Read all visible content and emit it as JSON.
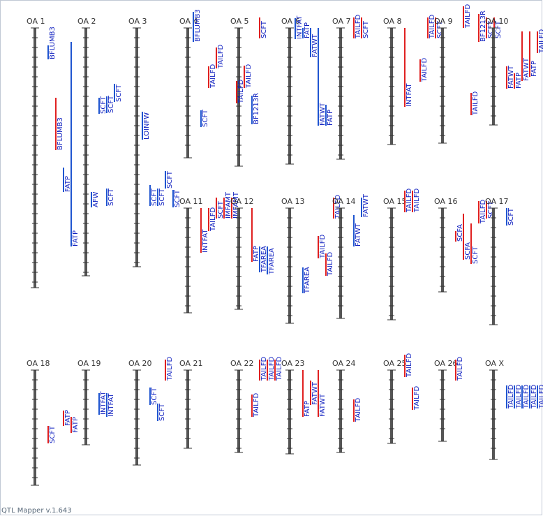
{
  "footer": "QTL Mapper v.1.643",
  "colors": {
    "chromosome": "#555555",
    "tick": "#333333",
    "qtl_red": "#e02020",
    "qtl_blue": "#1f55d0",
    "label": "#1020c0"
  },
  "chromosomes": [
    {
      "name": "OA 1",
      "row": 0,
      "col": 0,
      "length": 372,
      "qtls": [
        {
          "label": "BFLUMB3",
          "lane": 1,
          "start": 25,
          "end": 45,
          "color": "blue"
        },
        {
          "label": "BFLUMB3",
          "lane": 2,
          "start": 100,
          "end": 175,
          "color": "red"
        },
        {
          "label": "FATP",
          "lane": 3,
          "start": 200,
          "end": 235,
          "color": "blue"
        },
        {
          "label": "FATP",
          "lane": 4,
          "start": 20,
          "end": 313,
          "color": "blue"
        }
      ]
    },
    {
      "name": "OA 2",
      "row": 0,
      "col": 1,
      "length": 355,
      "qtls": [
        {
          "label": "SCFT",
          "lane": 1,
          "start": 100,
          "end": 123,
          "color": "blue"
        },
        {
          "label": "SCFT",
          "lane": 2,
          "start": 98,
          "end": 122,
          "color": "blue"
        },
        {
          "label": "SCFT",
          "lane": 3,
          "start": 80,
          "end": 106,
          "color": "blue"
        },
        {
          "label": "AFW",
          "lane": 0,
          "start": 235,
          "end": 257,
          "color": "blue"
        },
        {
          "label": "SCFT",
          "lane": 2,
          "start": 230,
          "end": 255,
          "color": "blue"
        }
      ]
    },
    {
      "name": "OA 3",
      "row": 0,
      "col": 2,
      "length": 342,
      "qtls": [
        {
          "label": "LOINFW",
          "lane": 0,
          "start": 120,
          "end": 160,
          "color": "blue"
        },
        {
          "label": "SCFT",
          "lane": 1,
          "start": 225,
          "end": 255,
          "color": "blue"
        },
        {
          "label": "SCFT",
          "lane": 2,
          "start": 230,
          "end": 255,
          "color": "blue"
        },
        {
          "label": "SCFT",
          "lane": 3,
          "start": 205,
          "end": 230,
          "color": "blue"
        },
        {
          "label": "SCFT",
          "lane": 4,
          "start": 232,
          "end": 257,
          "color": "blue"
        }
      ]
    },
    {
      "name": "OA 4",
      "row": 0,
      "col": 3,
      "length": 186,
      "qtls": [
        {
          "label": "BFLUMB3",
          "lane": 0,
          "start": -23,
          "end": 20,
          "color": "blue"
        },
        {
          "label": "TAILFD",
          "lane": 2,
          "start": 55,
          "end": 86,
          "color": "red"
        },
        {
          "label": "TAILFD",
          "lane": 3,
          "start": 28,
          "end": 58,
          "color": "red"
        },
        {
          "label": "SCFT",
          "lane": 1,
          "start": 118,
          "end": 142,
          "color": "blue"
        }
      ]
    },
    {
      "name": "OA 5",
      "row": 0,
      "col": 4,
      "length": 198,
      "qtls": [
        {
          "label": "SCFT",
          "lane": 2,
          "start": -15,
          "end": 15,
          "color": "red"
        },
        {
          "label": "TAILFD",
          "lane": 0,
          "start": 54,
          "end": 86,
          "color": "red"
        },
        {
          "label": "TAILFD",
          "lane": -1,
          "start": 76,
          "end": 108,
          "color": "red"
        },
        {
          "label": "BF1213R",
          "lane": 1,
          "start": 97,
          "end": 138,
          "color": "blue"
        }
      ]
    },
    {
      "name": "OA 6",
      "row": 0,
      "col": 5,
      "length": 195,
      "qtls": [
        {
          "label": "INTFAT",
          "lane": 0,
          "start": -14,
          "end": 16,
          "color": "blue"
        },
        {
          "label": "FATP",
          "lane": 1,
          "start": 0,
          "end": 15,
          "color": "blue"
        },
        {
          "label": "FATWT",
          "lane": 2,
          "start": 0,
          "end": 42,
          "color": "blue"
        },
        {
          "label": "FATWT",
          "lane": 3,
          "start": 0,
          "end": 140,
          "color": "blue"
        },
        {
          "label": "FATP",
          "lane": 4,
          "start": 110,
          "end": 140,
          "color": "blue"
        }
      ]
    },
    {
      "name": "OA 7",
      "row": 0,
      "col": 6,
      "length": 188,
      "qtls": [
        {
          "label": "TAILFD",
          "lane": 1,
          "start": -15,
          "end": 15,
          "color": "red"
        },
        {
          "label": "SCFT",
          "lane": 2,
          "start": -15,
          "end": 15,
          "color": "red"
        }
      ]
    },
    {
      "name": "OA 8",
      "row": 0,
      "col": 7,
      "length": 167,
      "qtls": [
        {
          "label": "INTFAT",
          "lane": 1,
          "start": 0,
          "end": 113,
          "color": "red"
        },
        {
          "label": "TAILFD",
          "lane": 3,
          "start": 45,
          "end": 77,
          "color": "red"
        },
        {
          "label": "TAILFD",
          "lane": 4,
          "start": -15,
          "end": 15,
          "color": "red"
        },
        {
          "label": "SCFT",
          "lane": 5,
          "start": -15,
          "end": 15,
          "color": "red"
        }
      ]
    },
    {
      "name": "OA 9",
      "row": 0,
      "col": 8,
      "length": 165,
      "qtls": [
        {
          "label": "TAILFD",
          "lane": 2,
          "start": -31,
          "end": 0,
          "color": "red"
        },
        {
          "label": "TAILFD",
          "lane": 3,
          "start": 93,
          "end": 125,
          "color": "red"
        },
        {
          "label": "BF1213R",
          "lane": 4,
          "start": -20,
          "end": 20,
          "color": "red"
        },
        {
          "label": "SCFT",
          "lane": 5,
          "start": -15,
          "end": 15,
          "color": "red"
        },
        {
          "label": "SCFT",
          "lane": 6,
          "start": -15,
          "end": 15,
          "color": "red"
        }
      ]
    },
    {
      "name": "OA 10",
      "row": 0,
      "col": 9,
      "length": 139,
      "qtls": [
        {
          "label": "FATWT",
          "lane": 1,
          "start": 55,
          "end": 87,
          "color": "red"
        },
        {
          "label": "FATP",
          "lane": 2,
          "start": 65,
          "end": 87,
          "color": "red"
        },
        {
          "label": "FATWT",
          "lane": 3,
          "start": 5,
          "end": 76,
          "color": "red"
        },
        {
          "label": "FATP",
          "lane": 4,
          "start": 5,
          "end": 70,
          "color": "red"
        },
        {
          "label": "TAILFD",
          "lane": 5,
          "start": 5,
          "end": 36,
          "color": "red"
        }
      ]
    },
    {
      "name": "OA 11",
      "row": 1,
      "col": 3,
      "length": 150,
      "qtls": [
        {
          "label": "INTFAT",
          "lane": 1,
          "start": 0,
          "end": 64,
          "color": "red"
        },
        {
          "label": "TAILFD",
          "lane": 2,
          "start": 0,
          "end": 33,
          "color": "red"
        },
        {
          "label": "SCFT",
          "lane": 3,
          "start": -15,
          "end": 15,
          "color": "red"
        },
        {
          "label": "IMFAMT",
          "lane": 4,
          "start": -15,
          "end": 15,
          "color": "red"
        },
        {
          "label": "IMFAMT",
          "lane": 5,
          "start": -15,
          "end": 15,
          "color": "red"
        }
      ]
    },
    {
      "name": "OA 12",
      "row": 1,
      "col": 4,
      "length": 145,
      "qtls": [
        {
          "label": "FATP",
          "lane": 1,
          "start": 0,
          "end": 77,
          "color": "red"
        },
        {
          "label": "TFAREA",
          "lane": 2,
          "start": 55,
          "end": 92,
          "color": "blue"
        },
        {
          "label": "TFAREA",
          "lane": 3,
          "start": 55,
          "end": 95,
          "color": "blue"
        }
      ]
    },
    {
      "name": "OA 13",
      "row": 1,
      "col": 5,
      "length": 165,
      "qtls": [
        {
          "label": "TFAREA",
          "lane": 1,
          "start": 85,
          "end": 122,
          "color": "blue"
        },
        {
          "label": "TAILFD",
          "lane": 3,
          "start": 40,
          "end": 72,
          "color": "red"
        },
        {
          "label": "TAILFD",
          "lane": 4,
          "start": 65,
          "end": 97,
          "color": "red"
        },
        {
          "label": "TAILFD",
          "lane": 5,
          "start": -15,
          "end": 15,
          "color": "red"
        }
      ]
    },
    {
      "name": "OA 14",
      "row": 1,
      "col": 6,
      "length": 158,
      "qtls": [
        {
          "label": "FATWT",
          "lane": 1,
          "start": 10,
          "end": 55,
          "color": "blue"
        },
        {
          "label": "FATWT",
          "lane": 2,
          "start": -15,
          "end": 13,
          "color": "blue"
        }
      ]
    },
    {
      "name": "OA 15",
      "row": 1,
      "col": 7,
      "length": 160,
      "qtls": [
        {
          "label": "TAILFD",
          "lane": 1,
          "start": -25,
          "end": 6,
          "color": "red"
        },
        {
          "label": "TAILFD",
          "lane": 2,
          "start": -25,
          "end": 6,
          "color": "red"
        }
      ]
    },
    {
      "name": "OA 16",
      "row": 1,
      "col": 8,
      "length": 120,
      "qtls": [
        {
          "label": "SCFA",
          "lane": 1,
          "start": 33,
          "end": 48,
          "color": "red"
        },
        {
          "label": "SCFA",
          "lane": 2,
          "start": 8,
          "end": 74,
          "color": "red"
        },
        {
          "label": "SCFT",
          "lane": 3,
          "start": 22,
          "end": 80,
          "color": "red"
        },
        {
          "label": "TAILFD",
          "lane": 4,
          "start": -10,
          "end": 22,
          "color": "red"
        },
        {
          "label": "SCFT",
          "lane": 5,
          "start": -10,
          "end": 15,
          "color": "red"
        }
      ]
    },
    {
      "name": "OA 17",
      "row": 1,
      "col": 9,
      "length": 167,
      "qtls": [
        {
          "label": "SCFT",
          "lane": 1,
          "start": 0,
          "end": 25,
          "color": "blue"
        }
      ]
    },
    {
      "name": "OA 18",
      "row": 2,
      "col": 0,
      "length": 165,
      "qtls": [
        {
          "label": "SCFT",
          "lane": 1,
          "start": 80,
          "end": 105,
          "color": "red"
        },
        {
          "label": "FATP",
          "lane": 3,
          "start": 58,
          "end": 80,
          "color": "red"
        },
        {
          "label": "FATP",
          "lane": 4,
          "start": 67,
          "end": 90,
          "color": "red"
        }
      ]
    },
    {
      "name": "OA 19",
      "row": 2,
      "col": 1,
      "length": 107,
      "qtls": [
        {
          "label": "INTFAT",
          "lane": 1,
          "start": 33,
          "end": 64,
          "color": "blue"
        },
        {
          "label": "INTFAT",
          "lane": 2,
          "start": 33,
          "end": 67,
          "color": "blue"
        }
      ]
    },
    {
      "name": "OA 20",
      "row": 2,
      "col": 2,
      "length": 136,
      "qtls": [
        {
          "label": "SCFT",
          "lane": 1,
          "start": 25,
          "end": 50,
          "color": "blue"
        },
        {
          "label": "SCFT",
          "lane": 2,
          "start": 48,
          "end": 73,
          "color": "blue"
        },
        {
          "label": "TAILFD",
          "lane": 3,
          "start": -15,
          "end": 15,
          "color": "red"
        }
      ]
    },
    {
      "name": "OA 21",
      "row": 2,
      "col": 3,
      "length": 112,
      "qtls": []
    },
    {
      "name": "OA 22",
      "row": 2,
      "col": 4,
      "length": 118,
      "qtls": [
        {
          "label": "TAILFD",
          "lane": 1,
          "start": 35,
          "end": 67,
          "color": "red"
        },
        {
          "label": "TAILFD",
          "lane": 2,
          "start": -15,
          "end": 15,
          "color": "red"
        },
        {
          "label": "TAILFD",
          "lane": 3,
          "start": -15,
          "end": 15,
          "color": "red"
        },
        {
          "label": "TAILFD",
          "lane": 4,
          "start": -15,
          "end": 15,
          "color": "red"
        }
      ]
    },
    {
      "name": "OA 23",
      "row": 2,
      "col": 5,
      "length": 120,
      "qtls": [
        {
          "label": "FATP",
          "lane": 1,
          "start": 0,
          "end": 67,
          "color": "red"
        },
        {
          "label": "FATWT",
          "lane": 2,
          "start": 15,
          "end": 50,
          "color": "red"
        },
        {
          "label": "FATWT",
          "lane": 3,
          "start": 0,
          "end": 67,
          "color": "red"
        }
      ]
    },
    {
      "name": "OA 24",
      "row": 2,
      "col": 6,
      "length": 118,
      "qtls": [
        {
          "label": "TAILFD",
          "lane": 1,
          "start": 42,
          "end": 74,
          "color": "red"
        }
      ]
    },
    {
      "name": "OA 25",
      "row": 2,
      "col": 7,
      "length": 105,
      "qtls": [
        {
          "label": "TAILFD",
          "lane": 1,
          "start": -22,
          "end": 10,
          "color": "red"
        },
        {
          "label": "TAILFD",
          "lane": 2,
          "start": 25,
          "end": 57,
          "color": "red"
        }
      ]
    },
    {
      "name": "OA 26",
      "row": 2,
      "col": 8,
      "length": 102,
      "qtls": [
        {
          "label": "TAILFD",
          "lane": 1,
          "start": -15,
          "end": 15,
          "color": "red"
        }
      ]
    },
    {
      "name": "OA X",
      "row": 2,
      "col": 9,
      "length": 128,
      "qtls": [
        {
          "label": "TAILFD",
          "lane": 1,
          "start": 22,
          "end": 55,
          "color": "blue"
        },
        {
          "label": "TAILFD",
          "lane": 2,
          "start": 22,
          "end": 55,
          "color": "blue"
        },
        {
          "label": "TAILFD",
          "lane": 3,
          "start": 22,
          "end": 55,
          "color": "blue"
        },
        {
          "label": "TAILFD",
          "lane": 4,
          "start": 22,
          "end": 55,
          "color": "blue"
        },
        {
          "label": "TAILFD",
          "lane": 5,
          "start": 22,
          "end": 55,
          "color": "blue"
        }
      ]
    }
  ]
}
